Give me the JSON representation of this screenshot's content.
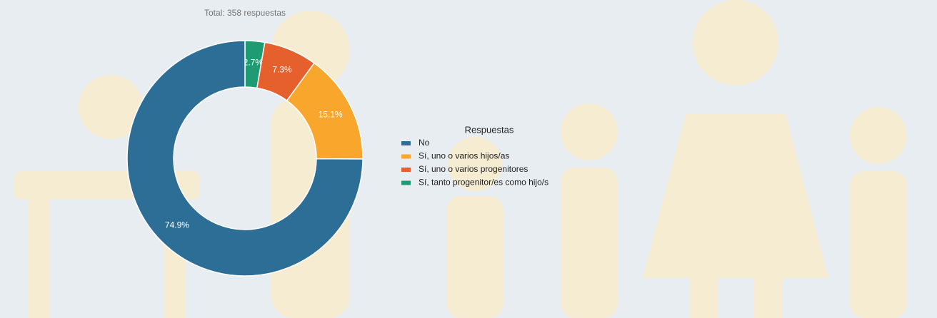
{
  "chart_data": {
    "type": "donut",
    "title": "Total: 358 respuestas",
    "legend_title": "Respuestas",
    "categories": [
      "No",
      "Sí, uno o varios hijos/as",
      "Sí, uno o varios progenitores",
      "Sí, tanto progenitor/es como hijo/s"
    ],
    "values": [
      74.9,
      15.1,
      7.3,
      2.7
    ],
    "value_labels": [
      "74.9%",
      "15.1%",
      "7.3%",
      "2.7%"
    ],
    "colors": [
      "#2c6e96",
      "#f8a62c",
      "#e6602d",
      "#1f9b73"
    ],
    "legend": "right"
  }
}
